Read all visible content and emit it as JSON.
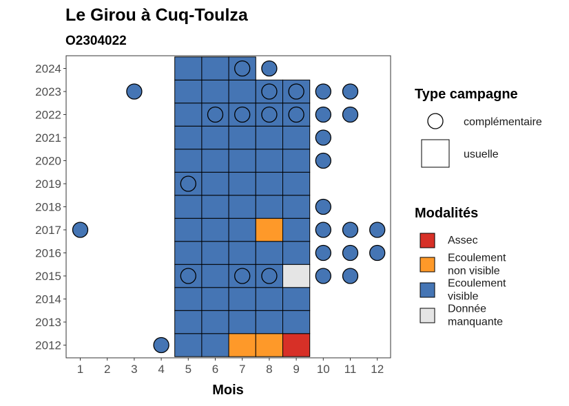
{
  "chart_data": {
    "type": "heatmap",
    "title": "Le Girou à Cuq-Toulza",
    "subtitle": "O2304022",
    "xlabel": "Mois",
    "ylabel": "",
    "x_ticks": [
      "1",
      "2",
      "3",
      "4",
      "5",
      "6",
      "7",
      "8",
      "9",
      "10",
      "11",
      "12"
    ],
    "y_ticks": [
      "2012",
      "2013",
      "2014",
      "2015",
      "2016",
      "2017",
      "2018",
      "2019",
      "2020",
      "2021",
      "2022",
      "2023",
      "2024"
    ],
    "xlim": [
      0.5,
      12.5
    ],
    "ylim": [
      2011.5,
      2024.6
    ],
    "grid": false,
    "legends": [
      {
        "title": "Type campagne",
        "position": "right",
        "entries": [
          {
            "label": "complémentaire",
            "shape": "circle"
          },
          {
            "label": "usuelle",
            "shape": "square"
          }
        ]
      },
      {
        "title": "Modalités",
        "position": "right",
        "entries": [
          {
            "label": "Assec",
            "label_lines": [
              "Assec"
            ],
            "color": "#d73027"
          },
          {
            "label": "Ecoulement non visible",
            "label_lines": [
              "Ecoulement",
              "non visible"
            ],
            "color": "#fe9929"
          },
          {
            "label": "Ecoulement visible",
            "label_lines": [
              "Ecoulement",
              "visible"
            ],
            "color": "#4575b4"
          },
          {
            "label": "Donnée manquante",
            "label_lines": [
              "Donnée",
              "manquante"
            ],
            "color": "#e5e5e5"
          }
        ]
      }
    ],
    "colors": {
      "Assec": "#d73027",
      "Ecoulement non visible": "#fe9929",
      "Ecoulement visible": "#4575b4",
      "Donnée manquante": "#e5e5e5"
    },
    "usual_observations": [
      {
        "year": 2012,
        "month": 5,
        "modalite": "Ecoulement visible"
      },
      {
        "year": 2012,
        "month": 6,
        "modalite": "Ecoulement visible"
      },
      {
        "year": 2012,
        "month": 7,
        "modalite": "Ecoulement non visible"
      },
      {
        "year": 2012,
        "month": 8,
        "modalite": "Ecoulement non visible"
      },
      {
        "year": 2012,
        "month": 9,
        "modalite": "Assec"
      },
      {
        "year": 2013,
        "month": 5,
        "modalite": "Ecoulement visible"
      },
      {
        "year": 2013,
        "month": 6,
        "modalite": "Ecoulement visible"
      },
      {
        "year": 2013,
        "month": 7,
        "modalite": "Ecoulement visible"
      },
      {
        "year": 2013,
        "month": 8,
        "modalite": "Ecoulement visible"
      },
      {
        "year": 2013,
        "month": 9,
        "modalite": "Ecoulement visible"
      },
      {
        "year": 2014,
        "month": 5,
        "modalite": "Ecoulement visible"
      },
      {
        "year": 2014,
        "month": 6,
        "modalite": "Ecoulement visible"
      },
      {
        "year": 2014,
        "month": 7,
        "modalite": "Ecoulement visible"
      },
      {
        "year": 2014,
        "month": 8,
        "modalite": "Ecoulement visible"
      },
      {
        "year": 2014,
        "month": 9,
        "modalite": "Ecoulement visible"
      },
      {
        "year": 2015,
        "month": 5,
        "modalite": "Ecoulement visible"
      },
      {
        "year": 2015,
        "month": 6,
        "modalite": "Ecoulement visible"
      },
      {
        "year": 2015,
        "month": 7,
        "modalite": "Ecoulement visible"
      },
      {
        "year": 2015,
        "month": 8,
        "modalite": "Ecoulement visible"
      },
      {
        "year": 2015,
        "month": 9,
        "modalite": "Donnée manquante"
      },
      {
        "year": 2016,
        "month": 5,
        "modalite": "Ecoulement visible"
      },
      {
        "year": 2016,
        "month": 6,
        "modalite": "Ecoulement visible"
      },
      {
        "year": 2016,
        "month": 7,
        "modalite": "Ecoulement visible"
      },
      {
        "year": 2016,
        "month": 8,
        "modalite": "Ecoulement visible"
      },
      {
        "year": 2016,
        "month": 9,
        "modalite": "Ecoulement visible"
      },
      {
        "year": 2017,
        "month": 5,
        "modalite": "Ecoulement visible"
      },
      {
        "year": 2017,
        "month": 6,
        "modalite": "Ecoulement visible"
      },
      {
        "year": 2017,
        "month": 7,
        "modalite": "Ecoulement visible"
      },
      {
        "year": 2017,
        "month": 8,
        "modalite": "Ecoulement non visible"
      },
      {
        "year": 2017,
        "month": 9,
        "modalite": "Ecoulement visible"
      },
      {
        "year": 2018,
        "month": 5,
        "modalite": "Ecoulement visible"
      },
      {
        "year": 2018,
        "month": 6,
        "modalite": "Ecoulement visible"
      },
      {
        "year": 2018,
        "month": 7,
        "modalite": "Ecoulement visible"
      },
      {
        "year": 2018,
        "month": 8,
        "modalite": "Ecoulement visible"
      },
      {
        "year": 2018,
        "month": 9,
        "modalite": "Ecoulement visible"
      },
      {
        "year": 2019,
        "month": 5,
        "modalite": "Ecoulement visible"
      },
      {
        "year": 2019,
        "month": 6,
        "modalite": "Ecoulement visible"
      },
      {
        "year": 2019,
        "month": 7,
        "modalite": "Ecoulement visible"
      },
      {
        "year": 2019,
        "month": 8,
        "modalite": "Ecoulement visible"
      },
      {
        "year": 2019,
        "month": 9,
        "modalite": "Ecoulement visible"
      },
      {
        "year": 2020,
        "month": 5,
        "modalite": "Ecoulement visible"
      },
      {
        "year": 2020,
        "month": 6,
        "modalite": "Ecoulement visible"
      },
      {
        "year": 2020,
        "month": 7,
        "modalite": "Ecoulement visible"
      },
      {
        "year": 2020,
        "month": 8,
        "modalite": "Ecoulement visible"
      },
      {
        "year": 2020,
        "month": 9,
        "modalite": "Ecoulement visible"
      },
      {
        "year": 2021,
        "month": 5,
        "modalite": "Ecoulement visible"
      },
      {
        "year": 2021,
        "month": 6,
        "modalite": "Ecoulement visible"
      },
      {
        "year": 2021,
        "month": 7,
        "modalite": "Ecoulement visible"
      },
      {
        "year": 2021,
        "month": 8,
        "modalite": "Ecoulement visible"
      },
      {
        "year": 2021,
        "month": 9,
        "modalite": "Ecoulement visible"
      },
      {
        "year": 2022,
        "month": 5,
        "modalite": "Ecoulement visible"
      },
      {
        "year": 2022,
        "month": 6,
        "modalite": "Ecoulement visible"
      },
      {
        "year": 2022,
        "month": 7,
        "modalite": "Ecoulement visible"
      },
      {
        "year": 2022,
        "month": 8,
        "modalite": "Ecoulement visible"
      },
      {
        "year": 2022,
        "month": 9,
        "modalite": "Ecoulement visible"
      },
      {
        "year": 2023,
        "month": 5,
        "modalite": "Ecoulement visible"
      },
      {
        "year": 2023,
        "month": 6,
        "modalite": "Ecoulement visible"
      },
      {
        "year": 2023,
        "month": 7,
        "modalite": "Ecoulement visible"
      },
      {
        "year": 2023,
        "month": 8,
        "modalite": "Ecoulement visible"
      },
      {
        "year": 2023,
        "month": 9,
        "modalite": "Ecoulement visible"
      },
      {
        "year": 2024,
        "month": 5,
        "modalite": "Ecoulement visible"
      },
      {
        "year": 2024,
        "month": 6,
        "modalite": "Ecoulement visible"
      },
      {
        "year": 2024,
        "month": 7,
        "modalite": "Ecoulement visible"
      }
    ],
    "complementary_observations": [
      {
        "year": 2012,
        "month": 4,
        "modalite": "Ecoulement visible"
      },
      {
        "year": 2015,
        "month": 5,
        "modalite": "Ecoulement visible"
      },
      {
        "year": 2015,
        "month": 7,
        "modalite": "Ecoulement visible"
      },
      {
        "year": 2015,
        "month": 8,
        "modalite": "Ecoulement visible"
      },
      {
        "year": 2015,
        "month": 10,
        "modalite": "Ecoulement visible"
      },
      {
        "year": 2015,
        "month": 11,
        "modalite": "Ecoulement visible"
      },
      {
        "year": 2016,
        "month": 10,
        "modalite": "Ecoulement visible"
      },
      {
        "year": 2016,
        "month": 11,
        "modalite": "Ecoulement visible"
      },
      {
        "year": 2016,
        "month": 12,
        "modalite": "Ecoulement visible"
      },
      {
        "year": 2017,
        "month": 1,
        "modalite": "Ecoulement visible"
      },
      {
        "year": 2017,
        "month": 10,
        "modalite": "Ecoulement visible"
      },
      {
        "year": 2017,
        "month": 11,
        "modalite": "Ecoulement visible"
      },
      {
        "year": 2017,
        "month": 12,
        "modalite": "Ecoulement visible"
      },
      {
        "year": 2018,
        "month": 10,
        "modalite": "Ecoulement visible"
      },
      {
        "year": 2019,
        "month": 5,
        "modalite": "Ecoulement visible"
      },
      {
        "year": 2020,
        "month": 10,
        "modalite": "Ecoulement visible"
      },
      {
        "year": 2021,
        "month": 10,
        "modalite": "Ecoulement visible"
      },
      {
        "year": 2022,
        "month": 6,
        "modalite": "Ecoulement visible"
      },
      {
        "year": 2022,
        "month": 7,
        "modalite": "Ecoulement visible"
      },
      {
        "year": 2022,
        "month": 8,
        "modalite": "Ecoulement visible"
      },
      {
        "year": 2022,
        "month": 9,
        "modalite": "Ecoulement visible"
      },
      {
        "year": 2022,
        "month": 10,
        "modalite": "Ecoulement visible"
      },
      {
        "year": 2022,
        "month": 11,
        "modalite": "Ecoulement visible"
      },
      {
        "year": 2023,
        "month": 3,
        "modalite": "Ecoulement visible"
      },
      {
        "year": 2023,
        "month": 8,
        "modalite": "Ecoulement visible"
      },
      {
        "year": 2023,
        "month": 9,
        "modalite": "Ecoulement visible"
      },
      {
        "year": 2023,
        "month": 10,
        "modalite": "Ecoulement visible"
      },
      {
        "year": 2023,
        "month": 11,
        "modalite": "Ecoulement visible"
      },
      {
        "year": 2024,
        "month": 7,
        "modalite": "Ecoulement visible"
      },
      {
        "year": 2024,
        "month": 8,
        "modalite": "Ecoulement visible"
      }
    ]
  }
}
